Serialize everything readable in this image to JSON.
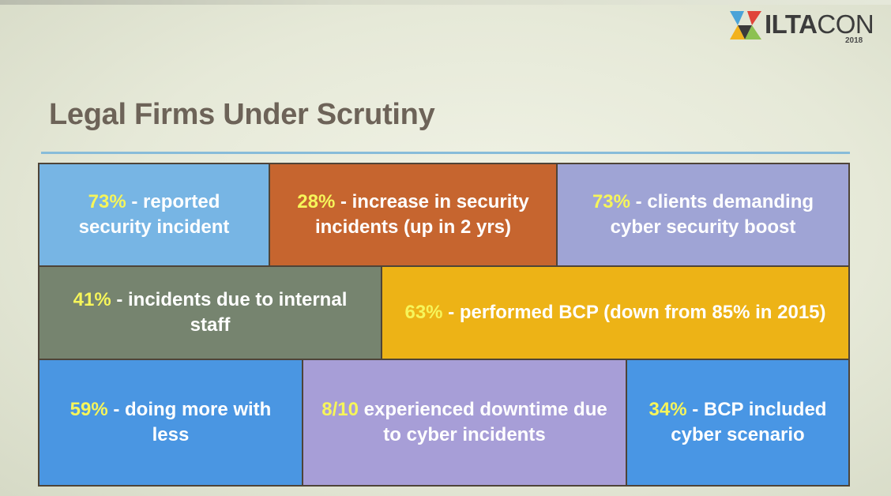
{
  "logo": {
    "name_bold": "ILTA",
    "name_regular": "CON",
    "year": "2018"
  },
  "slide": {
    "title": "Legal Firms Under Scrutiny"
  },
  "stats": [
    {
      "pct": "73%",
      "text": " -  reported security incident"
    },
    {
      "pct": "28%",
      "text": " - increase in security incidents (up in 2 yrs)"
    },
    {
      "pct": "73%",
      "text": " - clients demanding cyber security boost"
    },
    {
      "pct": "41%",
      "text": " - incidents due to internal staff"
    },
    {
      "pct": "63%",
      "text": " - performed BCP (down from 85% in 2015)"
    },
    {
      "pct": "59%",
      "text": " - doing more with less"
    },
    {
      "pct": "8/10",
      "text": " experienced downtime due to cyber incidents"
    },
    {
      "pct": "34%",
      "text": " - BCP included cyber scenario"
    }
  ],
  "colors": {
    "title": "#6d6358",
    "rule": "#88bcd9",
    "highlight": "#f6f55a",
    "cells": [
      "#77b5e4",
      "#c6652f",
      "#9fa4d5",
      "#76846f",
      "#edb316",
      "#4a96e2",
      "#a79ed7",
      "#4996e4"
    ]
  }
}
